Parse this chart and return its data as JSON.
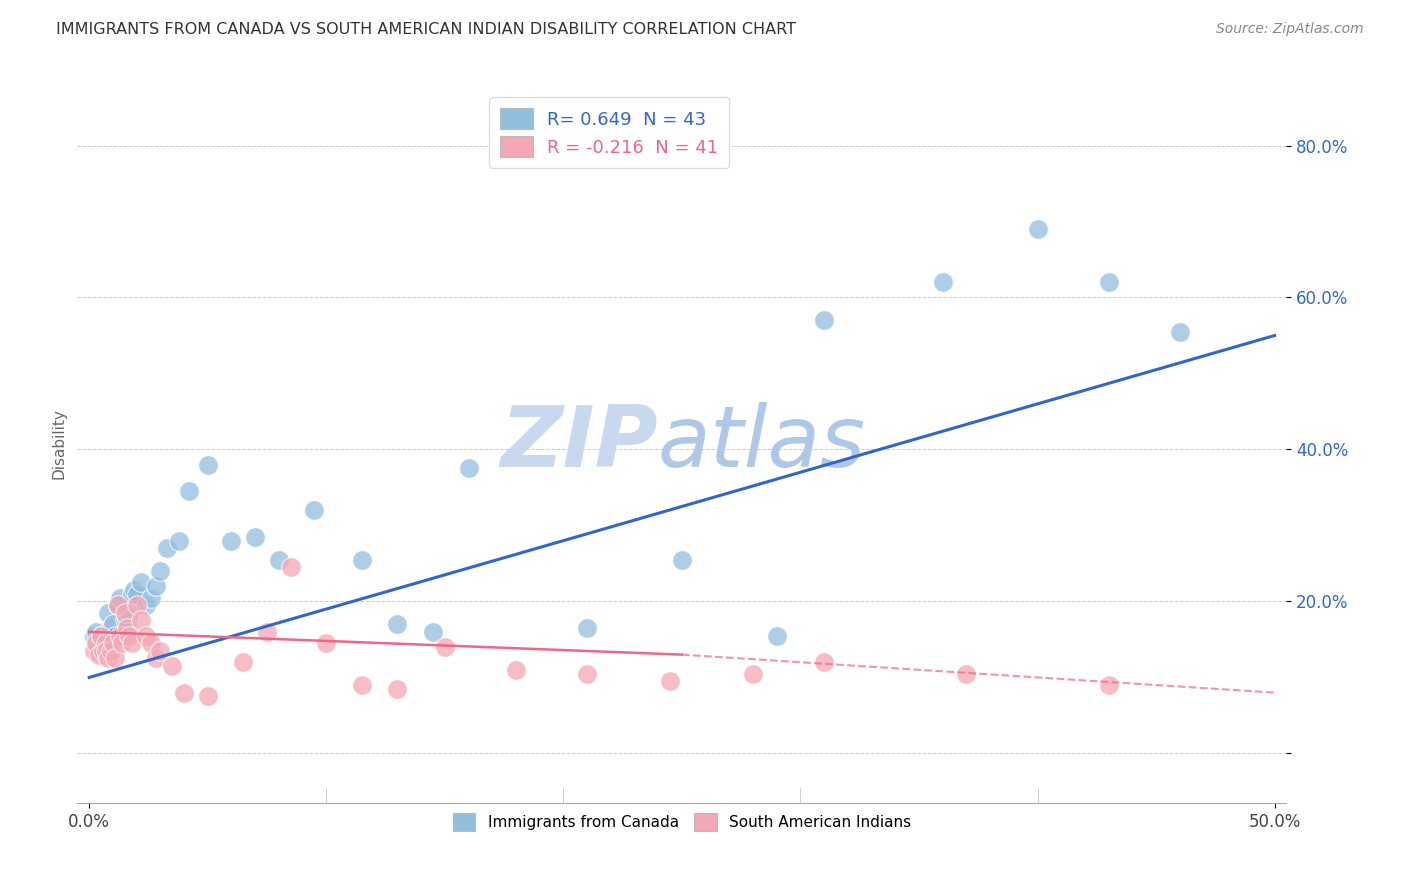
{
  "title": "IMMIGRANTS FROM CANADA VS SOUTH AMERICAN INDIAN DISABILITY CORRELATION CHART",
  "source": "Source: ZipAtlas.com",
  "ylabel": "Disability",
  "ytick_labels": [
    "",
    "20.0%",
    "40.0%",
    "60.0%",
    "80.0%"
  ],
  "ytick_values": [
    0.0,
    0.2,
    0.4,
    0.6,
    0.8
  ],
  "xlim": [
    -0.005,
    0.505
  ],
  "ylim": [
    -0.065,
    0.88
  ],
  "legend1_text": "R= 0.649  N = 43",
  "legend2_text": "R = -0.216  N = 41",
  "legend_label1": "Immigrants from Canada",
  "legend_label2": "South American Indians",
  "blue_color": "#92BEDE",
  "pink_color": "#F4A7B5",
  "blue_line_color": "#3366CC",
  "pink_line_color": "#EE6688",
  "watermark_zip": "ZIP",
  "watermark_atlas": "atlas",
  "blue_x": [
    0.002,
    0.003,
    0.004,
    0.005,
    0.006,
    0.007,
    0.008,
    0.009,
    0.01,
    0.011,
    0.012,
    0.013,
    0.015,
    0.016,
    0.017,
    0.018,
    0.019,
    0.02,
    0.022,
    0.024,
    0.026,
    0.028,
    0.03,
    0.033,
    0.038,
    0.042,
    0.05,
    0.06,
    0.07,
    0.08,
    0.095,
    0.115,
    0.13,
    0.145,
    0.16,
    0.21,
    0.25,
    0.29,
    0.31,
    0.36,
    0.4,
    0.43,
    0.46
  ],
  "blue_y": [
    0.155,
    0.16,
    0.14,
    0.155,
    0.145,
    0.135,
    0.185,
    0.165,
    0.17,
    0.155,
    0.195,
    0.205,
    0.175,
    0.175,
    0.185,
    0.21,
    0.215,
    0.21,
    0.225,
    0.195,
    0.205,
    0.22,
    0.24,
    0.27,
    0.28,
    0.345,
    0.38,
    0.28,
    0.285,
    0.255,
    0.32,
    0.255,
    0.17,
    0.16,
    0.375,
    0.165,
    0.255,
    0.155,
    0.57,
    0.62,
    0.69,
    0.62,
    0.555
  ],
  "pink_x": [
    0.002,
    0.003,
    0.004,
    0.005,
    0.006,
    0.007,
    0.007,
    0.008,
    0.009,
    0.01,
    0.011,
    0.012,
    0.013,
    0.014,
    0.015,
    0.016,
    0.017,
    0.018,
    0.02,
    0.022,
    0.024,
    0.026,
    0.028,
    0.03,
    0.035,
    0.04,
    0.05,
    0.065,
    0.075,
    0.085,
    0.1,
    0.115,
    0.13,
    0.15,
    0.18,
    0.21,
    0.245,
    0.28,
    0.31,
    0.37,
    0.43
  ],
  "pink_y": [
    0.135,
    0.145,
    0.13,
    0.155,
    0.135,
    0.145,
    0.135,
    0.125,
    0.135,
    0.145,
    0.125,
    0.195,
    0.155,
    0.145,
    0.185,
    0.165,
    0.155,
    0.145,
    0.195,
    0.175,
    0.155,
    0.145,
    0.125,
    0.135,
    0.115,
    0.08,
    0.075,
    0.12,
    0.16,
    0.245,
    0.145,
    0.09,
    0.085,
    0.14,
    0.11,
    0.105,
    0.095,
    0.105,
    0.12,
    0.105,
    0.09
  ],
  "blue_trend": [
    0.0,
    0.5,
    0.1,
    0.55
  ],
  "pink_trend_solid": [
    0.0,
    0.25,
    0.16,
    0.13
  ],
  "pink_trend_dashed": [
    0.25,
    0.5,
    0.13,
    0.08
  ],
  "grid_color": "#cccccc",
  "watermark_color": "#C8D8EE",
  "watermark_color2": "#B0C8E8",
  "background_color": "#ffffff"
}
